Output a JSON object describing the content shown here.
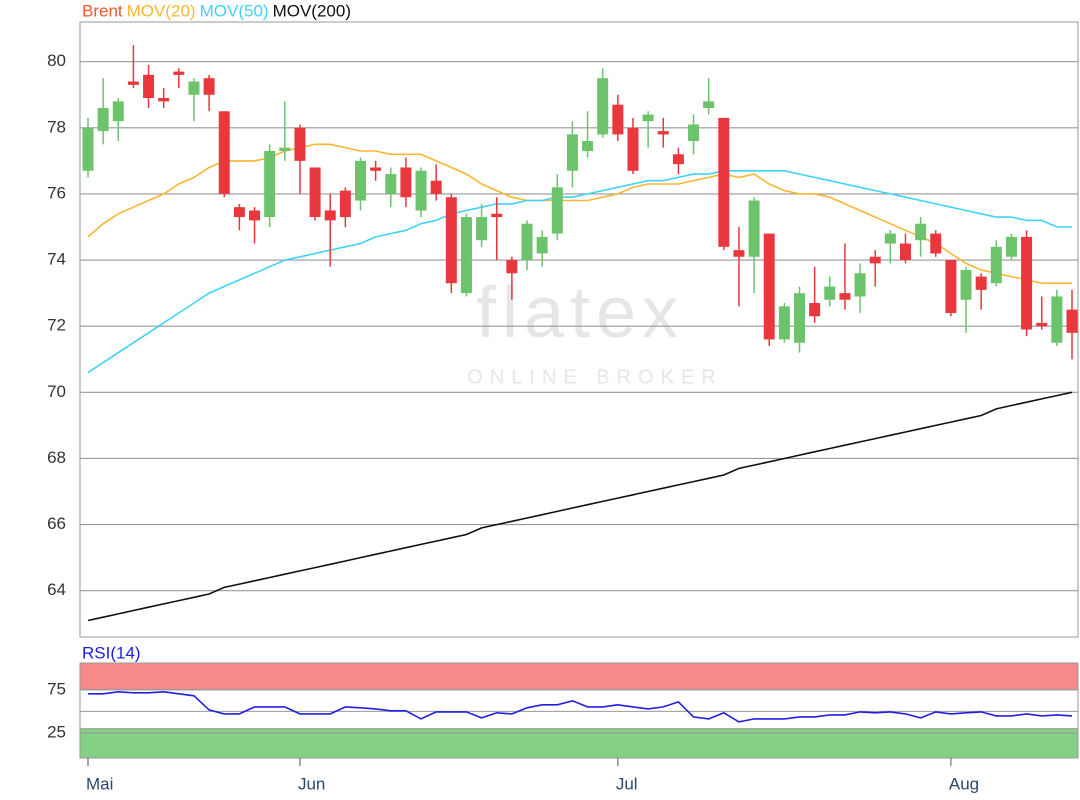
{
  "chart_data": [
    {
      "type": "candlestick",
      "name": "Brent",
      "name_color": "#f05a28",
      "up_color": "#6cc36c",
      "down_color": "#e8383d",
      "categories": [
        "Mai",
        null,
        null,
        null,
        null,
        null,
        null,
        null,
        null,
        null,
        null,
        null,
        null,
        null,
        "Jun",
        null,
        null,
        null,
        null,
        null,
        null,
        null,
        null,
        null,
        null,
        null,
        null,
        null,
        null,
        null,
        null,
        null,
        null,
        null,
        null,
        "Jul",
        null,
        null,
        null,
        null,
        null,
        null,
        null,
        null,
        null,
        null,
        null,
        null,
        null,
        null,
        null,
        null,
        null,
        null,
        null,
        null,
        null,
        "Aug",
        null,
        null,
        null,
        null,
        null,
        null,
        null,
        null
      ],
      "open": [
        76.7,
        77.9,
        78.2,
        79.4,
        79.6,
        78.9,
        79.7,
        79.0,
        79.5,
        78.5,
        75.6,
        75.5,
        75.3,
        77.3,
        78.0,
        76.8,
        75.5,
        76.1,
        75.8,
        76.8,
        76.0,
        76.8,
        75.5,
        76.4,
        75.9,
        73.0,
        74.6,
        75.4,
        74.0,
        74.0,
        74.2,
        74.8,
        76.7,
        77.3,
        77.8,
        78.7,
        78.0,
        78.2,
        77.9,
        77.2,
        77.6,
        78.6,
        78.3,
        74.3,
        74.1,
        74.8,
        71.6,
        71.5,
        72.7,
        72.8,
        73.0,
        72.9,
        74.1,
        74.5,
        74.5,
        74.6,
        74.8,
        74.0,
        72.8,
        73.5,
        73.3,
        74.1,
        74.7,
        72.1,
        71.5,
        72.5
      ],
      "high": [
        78.3,
        79.5,
        78.9,
        80.5,
        79.9,
        79.2,
        79.8,
        79.5,
        79.6,
        78.5,
        75.7,
        75.6,
        77.5,
        78.8,
        78.1,
        76.8,
        76.0,
        76.2,
        77.1,
        77.0,
        76.8,
        77.1,
        76.8,
        76.9,
        76.0,
        75.4,
        75.7,
        75.9,
        74.1,
        75.2,
        74.9,
        76.6,
        78.2,
        78.5,
        79.8,
        79.0,
        78.3,
        78.5,
        78.3,
        77.4,
        78.4,
        79.5,
        78.3,
        75.0,
        75.9,
        74.8,
        72.7,
        73.2,
        73.8,
        73.5,
        74.5,
        73.9,
        74.3,
        74.9,
        74.8,
        75.3,
        74.9,
        74.0,
        73.8,
        73.6,
        74.6,
        74.8,
        74.9,
        72.9,
        73.1,
        73.1
      ],
      "low": [
        76.5,
        77.5,
        77.6,
        79.2,
        78.6,
        78.6,
        79.2,
        78.2,
        78.5,
        75.9,
        74.9,
        74.5,
        75.0,
        77.0,
        76.0,
        75.2,
        73.8,
        75.0,
        75.5,
        76.4,
        75.6,
        75.6,
        75.3,
        75.8,
        73.0,
        72.9,
        74.4,
        74.0,
        72.8,
        73.7,
        73.8,
        74.6,
        76.2,
        77.1,
        77.7,
        77.6,
        76.6,
        77.4,
        77.4,
        76.6,
        77.2,
        78.4,
        74.3,
        72.6,
        73.0,
        71.4,
        71.5,
        71.2,
        72.1,
        72.6,
        72.5,
        72.4,
        73.2,
        73.9,
        73.9,
        74.1,
        74.1,
        72.3,
        71.8,
        72.5,
        73.2,
        74.0,
        71.7,
        71.9,
        71.4,
        71.0
      ],
      "close": [
        78.0,
        78.6,
        78.8,
        79.3,
        78.9,
        78.8,
        79.6,
        79.4,
        79.0,
        76.0,
        75.3,
        75.2,
        77.3,
        77.4,
        77.0,
        75.3,
        75.2,
        75.3,
        77.0,
        76.7,
        76.6,
        75.9,
        76.7,
        76.0,
        73.3,
        75.3,
        75.3,
        75.3,
        73.6,
        75.1,
        74.7,
        76.2,
        77.8,
        77.6,
        79.5,
        77.8,
        76.7,
        78.4,
        77.8,
        76.9,
        78.1,
        78.8,
        74.4,
        74.1,
        75.8,
        71.6,
        72.6,
        73.0,
        72.3,
        73.2,
        72.8,
        73.6,
        73.9,
        74.8,
        74.0,
        75.1,
        74.2,
        72.4,
        73.7,
        73.1,
        74.4,
        74.7,
        71.9,
        72.0,
        72.9,
        71.8
      ],
      "series": [
        {
          "name": "MOV(20)",
          "color": "#f7b733",
          "values": [
            74.7,
            75.1,
            75.4,
            75.6,
            75.8,
            76.0,
            76.3,
            76.5,
            76.8,
            77.0,
            77.0,
            77.0,
            77.1,
            77.3,
            77.4,
            77.5,
            77.5,
            77.4,
            77.3,
            77.3,
            77.2,
            77.2,
            77.2,
            77.0,
            76.8,
            76.6,
            76.3,
            76.1,
            75.9,
            75.8,
            75.8,
            75.8,
            75.8,
            75.8,
            75.9,
            76.0,
            76.2,
            76.3,
            76.3,
            76.3,
            76.4,
            76.5,
            76.6,
            76.5,
            76.6,
            76.3,
            76.1,
            76.0,
            76.0,
            75.9,
            75.7,
            75.5,
            75.3,
            75.1,
            74.9,
            74.7,
            74.5,
            74.2,
            73.9,
            73.7,
            73.6,
            73.5,
            73.4,
            73.3,
            73.3,
            73.3
          ]
        },
        {
          "name": "MOV(50)",
          "color": "#3fd3f5",
          "values": [
            70.6,
            70.9,
            71.2,
            71.5,
            71.8,
            72.1,
            72.4,
            72.7,
            73.0,
            73.2,
            73.4,
            73.6,
            73.8,
            74.0,
            74.1,
            74.2,
            74.3,
            74.4,
            74.5,
            74.7,
            74.8,
            74.9,
            75.1,
            75.2,
            75.4,
            75.5,
            75.6,
            75.7,
            75.7,
            75.8,
            75.8,
            75.9,
            75.9,
            76.0,
            76.1,
            76.2,
            76.3,
            76.4,
            76.4,
            76.5,
            76.6,
            76.6,
            76.7,
            76.7,
            76.7,
            76.7,
            76.7,
            76.6,
            76.5,
            76.4,
            76.3,
            76.2,
            76.1,
            76.0,
            75.9,
            75.8,
            75.7,
            75.6,
            75.5,
            75.4,
            75.3,
            75.3,
            75.2,
            75.2,
            75.0,
            75.0
          ]
        },
        {
          "name": "MOV(200)",
          "color": "#111111",
          "values": [
            63.1,
            63.2,
            63.3,
            63.4,
            63.5,
            63.6,
            63.7,
            63.8,
            63.9,
            64.1,
            64.2,
            64.3,
            64.4,
            64.5,
            64.6,
            64.7,
            64.8,
            64.9,
            65.0,
            65.1,
            65.2,
            65.3,
            65.4,
            65.5,
            65.6,
            65.7,
            65.9,
            66.0,
            66.1,
            66.2,
            66.3,
            66.4,
            66.5,
            66.6,
            66.7,
            66.8,
            66.9,
            67.0,
            67.1,
            67.2,
            67.3,
            67.4,
            67.5,
            67.7,
            67.8,
            67.9,
            68.0,
            68.1,
            68.2,
            68.3,
            68.4,
            68.5,
            68.6,
            68.7,
            68.8,
            68.9,
            69.0,
            69.1,
            69.2,
            69.3,
            69.5,
            69.6,
            69.7,
            69.8,
            69.9,
            70.0
          ]
        }
      ],
      "ylim": [
        62.6,
        81.2
      ],
      "yticks": [
        64,
        66,
        68,
        70,
        72,
        74,
        76,
        78,
        80
      ],
      "grid": true,
      "watermark": {
        "name": "flatex",
        "tagline": "ONLINE BROKER"
      }
    },
    {
      "type": "line",
      "series": [
        {
          "name": "RSI(14)",
          "color": "#2020e0",
          "values": [
            70.3,
            70.3,
            72.7,
            71.5,
            71.5,
            72.7,
            70.3,
            68.0,
            51.7,
            47.1,
            47.1,
            55.2,
            55.2,
            55.2,
            47.1,
            47.1,
            47.1,
            55.2,
            54.1,
            52.9,
            50.6,
            50.6,
            41.3,
            49.4,
            49.4,
            49.4,
            42.4,
            48.3,
            47.1,
            54.1,
            57.6,
            57.6,
            62.2,
            55.2,
            55.2,
            57.6,
            55.2,
            52.9,
            55.2,
            61.0,
            43.6,
            41.3,
            48.3,
            37.8,
            41.3,
            41.3,
            41.3,
            43.6,
            43.6,
            45.9,
            45.9,
            49.4,
            48.3,
            49.4,
            47.1,
            42.4,
            49.4,
            47.1,
            48.3,
            49.4,
            44.8,
            44.8,
            47.1,
            44.8,
            45.9,
            44.8
          ]
        }
      ],
      "ylim": [
        -4,
        106
      ],
      "yticks": [
        25,
        75
      ],
      "midline": 50,
      "bands": [
        {
          "from": 75,
          "to": 106,
          "color": "#f48a8a"
        },
        {
          "from": -4,
          "to": 30,
          "color": "#84d084"
        }
      ]
    }
  ]
}
